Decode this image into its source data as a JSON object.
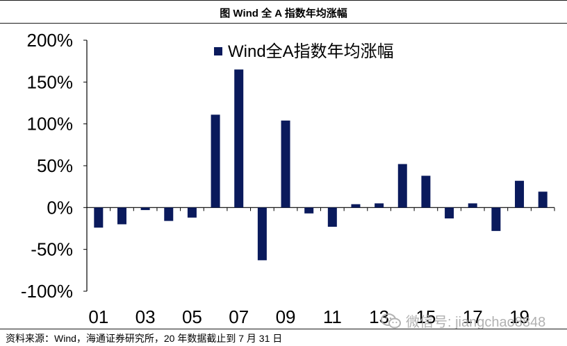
{
  "header": {
    "title": "图 Wind 全 A 指数年均涨幅"
  },
  "footer": {
    "source": "资料来源：Wind，海通证券研究所，20 年数据截止到 7 月 31 日"
  },
  "watermark": {
    "text": "微信号: jiangchao8848",
    "icon": "wechat-icon"
  },
  "colors": {
    "bar": "#0a1a5c",
    "axis": "#000000"
  },
  "chart_data": {
    "type": "bar",
    "title": "",
    "xlabel": "",
    "ylabel": "",
    "ylim": [
      -100,
      200
    ],
    "yticks": [
      -100,
      -50,
      0,
      50,
      100,
      150,
      200
    ],
    "ytick_labels": [
      "-100%",
      "-50%",
      "0%",
      "50%",
      "100%",
      "150%",
      "200%"
    ],
    "categories": [
      "01",
      "02",
      "03",
      "04",
      "05",
      "06",
      "07",
      "08",
      "09",
      "10",
      "11",
      "12",
      "13",
      "14",
      "15",
      "16",
      "17",
      "18",
      "19",
      "20"
    ],
    "xtick_labels_shown": [
      "01",
      "03",
      "05",
      "07",
      "09",
      "11",
      "13",
      "15",
      "17",
      "19"
    ],
    "series": [
      {
        "name": "Wind全A指数年均涨幅",
        "values": [
          -24,
          -20,
          -3,
          -16,
          -12,
          111,
          165,
          -63,
          104,
          -7,
          -23,
          4,
          5,
          52,
          38,
          -13,
          5,
          -28,
          32,
          19
        ]
      }
    ],
    "legend": "top-center",
    "grid": false
  }
}
